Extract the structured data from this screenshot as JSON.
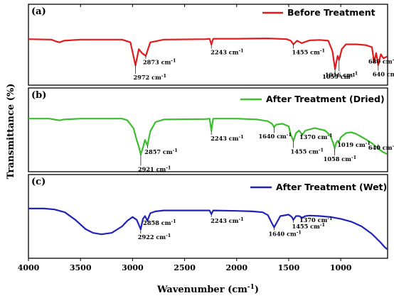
{
  "chart_data": {
    "type": "line",
    "xlabel": "Wavenumber (cm",
    "xlabel_sup": "-1",
    "xlabel_close": ")",
    "ylabel": "Transmittance (%)",
    "xlim": [
      4000,
      550
    ],
    "x_ticks": [
      4000,
      3500,
      3000,
      2500,
      2000,
      1500,
      1000
    ],
    "panels": [
      {
        "label": "(a)",
        "name": "Before Treatment",
        "color": "#e41a1c",
        "points": [
          [
            4000,
            0.2
          ],
          [
            3780,
            0.21
          ],
          [
            3730,
            0.26
          ],
          [
            3700,
            0.28
          ],
          [
            3660,
            0.24
          ],
          [
            3500,
            0.21
          ],
          [
            3100,
            0.21
          ],
          [
            3020,
            0.28
          ],
          [
            2972,
            0.86
          ],
          [
            2940,
            0.45
          ],
          [
            2910,
            0.55
          ],
          [
            2873,
            0.62
          ],
          [
            2830,
            0.28
          ],
          [
            2700,
            0.21
          ],
          [
            2300,
            0.2
          ],
          [
            2260,
            0.19
          ],
          [
            2243,
            0.33
          ],
          [
            2225,
            0.19
          ],
          [
            2000,
            0.19
          ],
          [
            1700,
            0.18
          ],
          [
            1520,
            0.2
          ],
          [
            1480,
            0.24
          ],
          [
            1455,
            0.33
          ],
          [
            1420,
            0.24
          ],
          [
            1375,
            0.3
          ],
          [
            1300,
            0.23
          ],
          [
            1200,
            0.22
          ],
          [
            1120,
            0.24
          ],
          [
            1080,
            0.5
          ],
          [
            1055,
            0.95
          ],
          [
            1040,
            0.75
          ],
          [
            1030,
            0.62
          ],
          [
            1016,
            0.72
          ],
          [
            990,
            0.45
          ],
          [
            950,
            0.33
          ],
          [
            850,
            0.33
          ],
          [
            760,
            0.35
          ],
          [
            700,
            0.4
          ],
          [
            680,
            0.78
          ],
          [
            660,
            0.55
          ],
          [
            640,
            0.85
          ],
          [
            615,
            0.58
          ],
          [
            590,
            0.68
          ],
          [
            555,
            0.64
          ]
        ],
        "annotations": [
          {
            "text": "2972 cm",
            "x": 2972
          },
          {
            "text": "2873 cm",
            "x": 2873
          },
          {
            "text": "2243 cm",
            "x": 2243
          },
          {
            "text": "1455 cm",
            "x": 1455
          },
          {
            "text": "1055 cm",
            "x": 1055
          },
          {
            "text": "1016 cm",
            "x": 1016
          },
          {
            "text": "680 cm",
            "x": 680
          },
          {
            "text": "640 cm",
            "x": 640
          }
        ]
      },
      {
        "label": "(b)",
        "name": "After Treatment (Dried)",
        "color": "#3dbd2f",
        "points": [
          [
            4000,
            0.12
          ],
          [
            3800,
            0.12
          ],
          [
            3730,
            0.15
          ],
          [
            3700,
            0.16
          ],
          [
            3660,
            0.14
          ],
          [
            3500,
            0.12
          ],
          [
            3100,
            0.12
          ],
          [
            3050,
            0.16
          ],
          [
            2990,
            0.35
          ],
          [
            2960,
            0.62
          ],
          [
            2940,
            0.78
          ],
          [
            2921,
            0.96
          ],
          [
            2900,
            0.8
          ],
          [
            2880,
            0.62
          ],
          [
            2857,
            0.75
          ],
          [
            2830,
            0.42
          ],
          [
            2780,
            0.2
          ],
          [
            2700,
            0.14
          ],
          [
            2300,
            0.13
          ],
          [
            2260,
            0.12
          ],
          [
            2243,
            0.4
          ],
          [
            2225,
            0.12
          ],
          [
            2000,
            0.12
          ],
          [
            1800,
            0.14
          ],
          [
            1700,
            0.18
          ],
          [
            1660,
            0.24
          ],
          [
            1640,
            0.32
          ],
          [
            1620,
            0.26
          ],
          [
            1560,
            0.24
          ],
          [
            1500,
            0.3
          ],
          [
            1480,
            0.5
          ],
          [
            1455,
            0.64
          ],
          [
            1430,
            0.46
          ],
          [
            1400,
            0.4
          ],
          [
            1370,
            0.5
          ],
          [
            1340,
            0.4
          ],
          [
            1250,
            0.34
          ],
          [
            1150,
            0.4
          ],
          [
            1100,
            0.52
          ],
          [
            1075,
            0.68
          ],
          [
            1058,
            0.82
          ],
          [
            1045,
            0.7
          ],
          [
            1030,
            0.64
          ],
          [
            1019,
            0.68
          ],
          [
            1000,
            0.56
          ],
          [
            950,
            0.46
          ],
          [
            900,
            0.44
          ],
          [
            850,
            0.48
          ],
          [
            800,
            0.55
          ],
          [
            750,
            0.62
          ],
          [
            700,
            0.7
          ],
          [
            660,
            0.78
          ],
          [
            640,
            0.82
          ],
          [
            600,
            0.9
          ],
          [
            555,
            0.95
          ]
        ],
        "annotations": [
          {
            "text": "2921 cm",
            "x": 2921
          },
          {
            "text": "2857 cm",
            "x": 2857
          },
          {
            "text": "2243 cm",
            "x": 2243
          },
          {
            "text": "1640 cm",
            "x": 1640
          },
          {
            "text": "1455 cm",
            "x": 1455
          },
          {
            "text": "1370 cm",
            "x": 1370
          },
          {
            "text": "1058 cm",
            "x": 1058
          },
          {
            "text": "1019 cm",
            "x": 1019
          },
          {
            "text": "640 cm",
            "x": 640
          }
        ]
      },
      {
        "label": "(c)",
        "name": "After Treatment (Wet)",
        "color": "#1f24b8",
        "points": [
          [
            4000,
            0.12
          ],
          [
            3850,
            0.12
          ],
          [
            3750,
            0.14
          ],
          [
            3650,
            0.2
          ],
          [
            3550,
            0.36
          ],
          [
            3450,
            0.56
          ],
          [
            3380,
            0.64
          ],
          [
            3300,
            0.67
          ],
          [
            3200,
            0.64
          ],
          [
            3100,
            0.5
          ],
          [
            3050,
            0.38
          ],
          [
            3000,
            0.3
          ],
          [
            2960,
            0.36
          ],
          [
            2922,
            0.56
          ],
          [
            2900,
            0.34
          ],
          [
            2880,
            0.28
          ],
          [
            2858,
            0.38
          ],
          [
            2830,
            0.22
          ],
          [
            2780,
            0.18
          ],
          [
            2700,
            0.16
          ],
          [
            2500,
            0.16
          ],
          [
            2300,
            0.16
          ],
          [
            2260,
            0.16
          ],
          [
            2243,
            0.24
          ],
          [
            2225,
            0.16
          ],
          [
            2000,
            0.17
          ],
          [
            1850,
            0.18
          ],
          [
            1750,
            0.2
          ],
          [
            1700,
            0.26
          ],
          [
            1660,
            0.44
          ],
          [
            1640,
            0.52
          ],
          [
            1620,
            0.44
          ],
          [
            1580,
            0.28
          ],
          [
            1500,
            0.25
          ],
          [
            1470,
            0.3
          ],
          [
            1455,
            0.36
          ],
          [
            1430,
            0.28
          ],
          [
            1400,
            0.28
          ],
          [
            1370,
            0.32
          ],
          [
            1340,
            0.28
          ],
          [
            1300,
            0.27
          ],
          [
            1200,
            0.28
          ],
          [
            1100,
            0.3
          ],
          [
            1000,
            0.34
          ],
          [
            900,
            0.4
          ],
          [
            800,
            0.5
          ],
          [
            700,
            0.66
          ],
          [
            620,
            0.84
          ],
          [
            580,
            0.94
          ],
          [
            555,
            0.99
          ]
        ],
        "annotations": [
          {
            "text": "2922 cm",
            "x": 2922
          },
          {
            "text": "2858 cm",
            "x": 2858
          },
          {
            "text": "2243 cm",
            "x": 2243
          },
          {
            "text": "1640 cm",
            "x": 1640
          },
          {
            "text": "1455 cm",
            "x": 1455
          },
          {
            "text": "1370 cm",
            "x": 1370
          }
        ]
      }
    ]
  }
}
